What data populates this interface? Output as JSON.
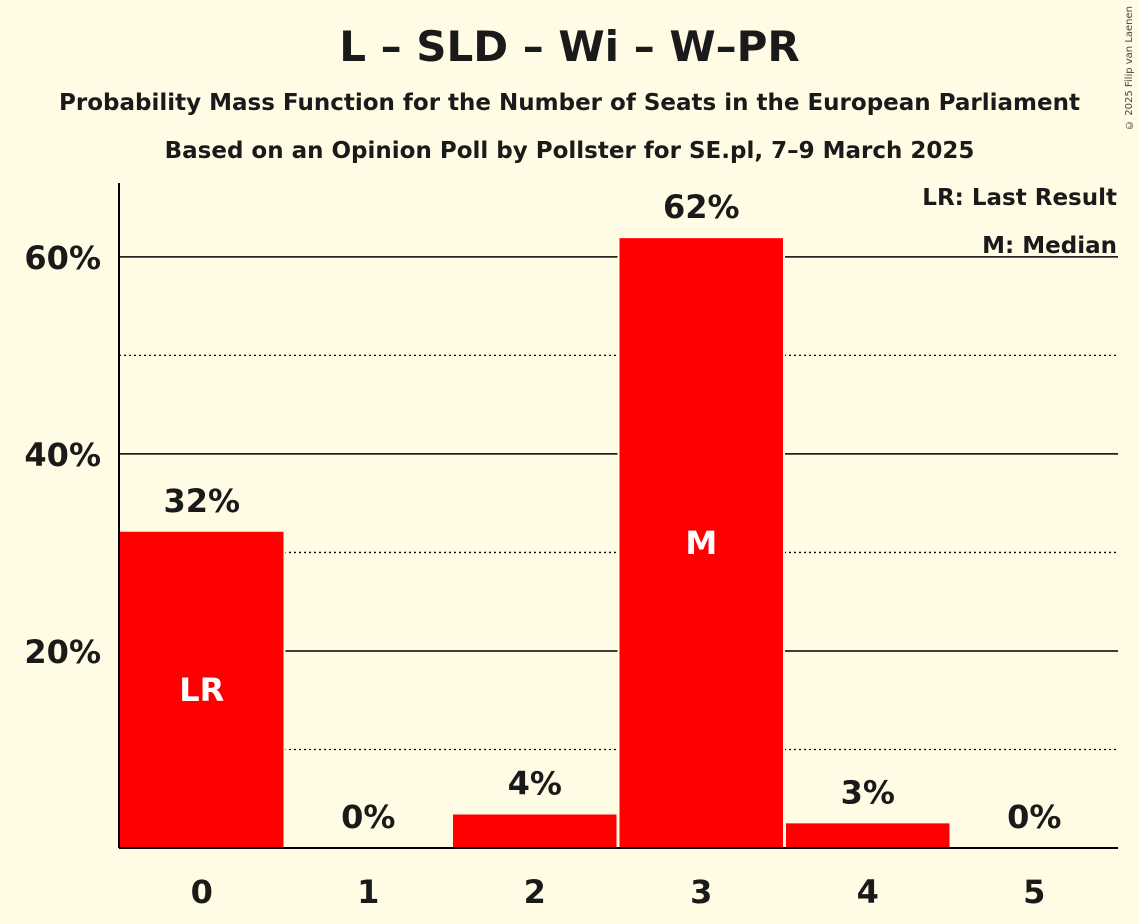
{
  "title": "L – SLD – Wi – W–PR",
  "subtitle": "Probability Mass Function for the Number of Seats in the European Parliament",
  "subtitle2": "Based on an Opinion Poll by Pollster for SE.pl, 7–9 March 2025",
  "copyright": "© 2025 Filip van Laenen",
  "legend": {
    "last_result": "LR: Last Result",
    "median": "M: Median"
  },
  "colors": {
    "bar": "#ff0000",
    "background": "#fffbe4",
    "axis": "#000000"
  },
  "chart_data": {
    "type": "bar",
    "categories": [
      "0",
      "1",
      "2",
      "3",
      "4",
      "5"
    ],
    "values": [
      32,
      0,
      4,
      62,
      3,
      0
    ],
    "precise_values": [
      32.1,
      0,
      3.4,
      61.9,
      2.5,
      0
    ],
    "data_labels": [
      "32%",
      "0%",
      "4%",
      "62%",
      "3%",
      "0%"
    ],
    "bar_markers": [
      "LR",
      "",
      "",
      "M",
      "",
      ""
    ],
    "yticks": [
      20,
      40,
      60
    ],
    "ytick_labels": [
      "20%",
      "40%",
      "60%"
    ],
    "minor_grid": [
      10,
      30,
      50
    ],
    "ylim": [
      0,
      67.5
    ],
    "grid": true,
    "legend_position": "top-right"
  }
}
